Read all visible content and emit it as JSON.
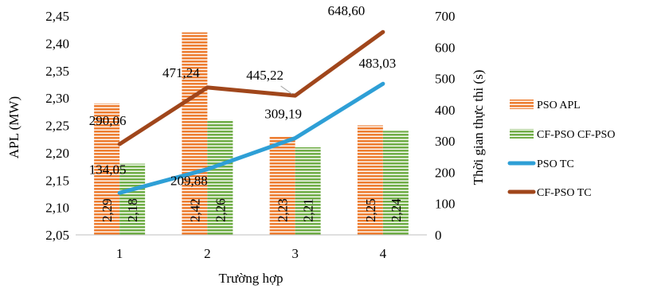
{
  "chart_data": {
    "type": "bar",
    "categories": [
      "1",
      "2",
      "3",
      "4"
    ],
    "xlabel": "Trường hợp",
    "ylabel": "APL (MW)",
    "y2label": "Thời gian thực thi (s)",
    "ylim": [
      2.05,
      2.45
    ],
    "y_ticks": [
      "2,05",
      "2,10",
      "2,15",
      "2,20",
      "2,25",
      "2,30",
      "2,35",
      "2,40",
      "2,45"
    ],
    "y2lim": [
      0,
      700
    ],
    "y2_ticks": [
      "0",
      "100",
      "200",
      "300",
      "400",
      "500",
      "600",
      "700"
    ],
    "grid": false,
    "legend_position": "right",
    "bar_series": [
      {
        "name": "PSO APL",
        "values": [
          2.29,
          2.42,
          2.23,
          2.25
        ],
        "labels": [
          "2,29",
          "2,42",
          "2,23",
          "2,25"
        ],
        "color": "#ED7D31",
        "stripe_color": "#ffffff"
      },
      {
        "name": "CF-PSO CF-PSO",
        "values": [
          2.18,
          2.26,
          2.21,
          2.24
        ],
        "labels": [
          "2,18",
          "2,26",
          "2,21",
          "2,24"
        ],
        "color": "#70AD47",
        "stripe_color": "#ffffff"
      }
    ],
    "line_series": [
      {
        "name": "PSO TC",
        "axis": "y2",
        "values": [
          134.05,
          209.88,
          309.19,
          483.03
        ],
        "labels": [
          "134,05",
          "209,88",
          "309,19",
          "483,03"
        ],
        "color": "#2E9FD6"
      },
      {
        "name": "CF-PSO TC",
        "axis": "y2",
        "values": [
          290.06,
          471.24,
          445.22,
          648.6
        ],
        "labels": [
          "290,06",
          "471,24",
          "445,22",
          "648,60"
        ],
        "color": "#A0461B"
      }
    ]
  }
}
